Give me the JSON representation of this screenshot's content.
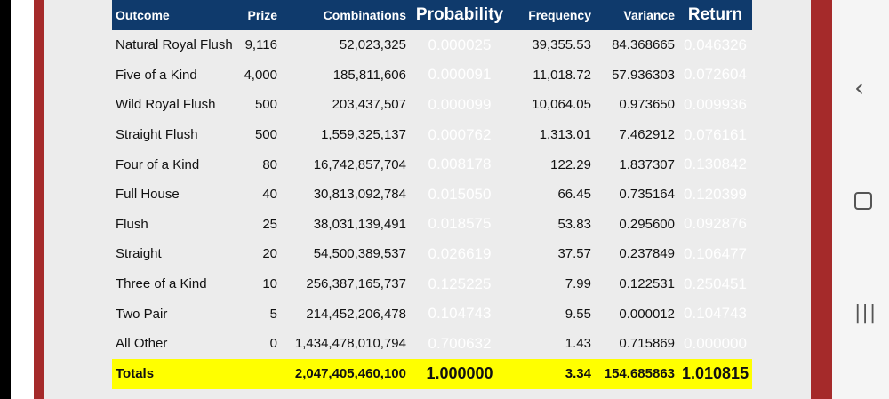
{
  "table": {
    "headers": [
      "Outcome",
      "Prize",
      "Combinations",
      "Probability",
      "Frequency",
      "Variance",
      "Return"
    ],
    "rows": [
      {
        "outcome": "Natural Royal Flush",
        "prize": "9,116",
        "combinations": "52,023,325",
        "probability": "0.000025",
        "frequency": "39,355.53",
        "variance": "84.368665",
        "return": "0.046326"
      },
      {
        "outcome": "Five of a Kind",
        "prize": "4,000",
        "combinations": "185,811,606",
        "probability": "0.000091",
        "frequency": "11,018.72",
        "variance": "57.936303",
        "return": "0.072604"
      },
      {
        "outcome": "Wild Royal Flush",
        "prize": "500",
        "combinations": "203,437,507",
        "probability": "0.000099",
        "frequency": "10,064.05",
        "variance": "0.973650",
        "return": "0.009936"
      },
      {
        "outcome": "Straight Flush",
        "prize": "500",
        "combinations": "1,559,325,137",
        "probability": "0.000762",
        "frequency": "1,313.01",
        "variance": "7.462912",
        "return": "0.076161"
      },
      {
        "outcome": "Four of a Kind",
        "prize": "80",
        "combinations": "16,742,857,704",
        "probability": "0.008178",
        "frequency": "122.29",
        "variance": "1.837307",
        "return": "0.130842"
      },
      {
        "outcome": "Full House",
        "prize": "40",
        "combinations": "30,813,092,784",
        "probability": "0.015050",
        "frequency": "66.45",
        "variance": "0.735164",
        "return": "0.120399"
      },
      {
        "outcome": "Flush",
        "prize": "25",
        "combinations": "38,031,139,491",
        "probability": "0.018575",
        "frequency": "53.83",
        "variance": "0.295600",
        "return": "0.092876"
      },
      {
        "outcome": "Straight",
        "prize": "20",
        "combinations": "54,500,389,537",
        "probability": "0.026619",
        "frequency": "37.57",
        "variance": "0.237849",
        "return": "0.106477"
      },
      {
        "outcome": "Three of a Kind",
        "prize": "10",
        "combinations": "256,387,165,737",
        "probability": "0.125225",
        "frequency": "7.99",
        "variance": "0.122531",
        "return": "0.250451"
      },
      {
        "outcome": "Two Pair",
        "prize": "5",
        "combinations": "214,452,206,478",
        "probability": "0.104743",
        "frequency": "9.55",
        "variance": "0.000012",
        "return": "0.104743"
      },
      {
        "outcome": "All Other",
        "prize": "0",
        "combinations": "1,434,478,010,794",
        "probability": "0.700632",
        "frequency": "1.43",
        "variance": "0.715869",
        "return": "0.000000"
      }
    ],
    "totals": {
      "label": "Totals",
      "prize": "",
      "combinations": "2,047,405,460,100",
      "probability": "1.000000",
      "frequency": "3.34",
      "variance": "154.685863",
      "return": "1.010815"
    }
  },
  "nav": {
    "back_glyph": "‹",
    "recents_glyph": "|||"
  },
  "colors": {
    "header_bg": "#0f3a6c",
    "totals_bg": "#ffff00",
    "frame": "#a52a2a",
    "panel": "#ececec"
  }
}
